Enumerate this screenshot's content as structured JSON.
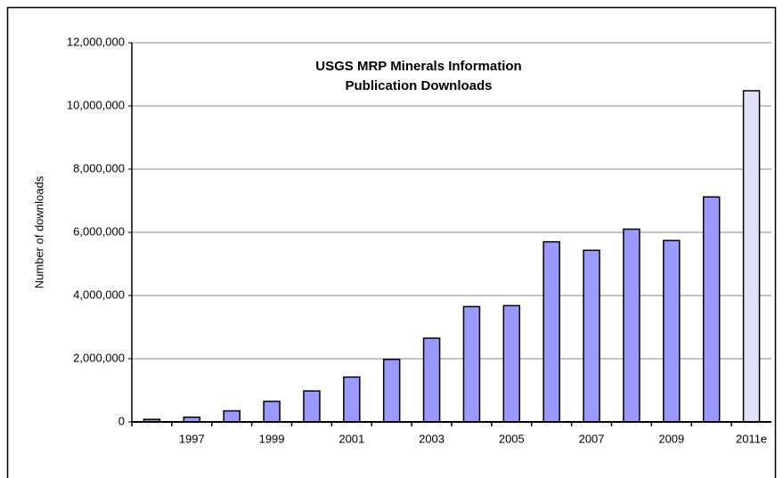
{
  "chart_data": {
    "type": "bar",
    "title": [
      "USGS MRP Minerals Information",
      "Publication Downloads"
    ],
    "y_label": "Number of downloads",
    "categories": [
      null,
      "1997",
      null,
      "1999",
      null,
      "2001",
      null,
      "2003",
      null,
      "2005",
      null,
      "2007",
      null,
      "2009",
      null,
      "2011e"
    ],
    "values": [
      80000,
      150000,
      350000,
      650000,
      980000,
      1420000,
      1980000,
      2650000,
      3650000,
      3680000,
      5700000,
      5430000,
      6100000,
      5740000,
      7120000,
      10480000
    ],
    "colors": [
      "#9999ff",
      "#9999ff",
      "#9999ff",
      "#9999ff",
      "#9999ff",
      "#9999ff",
      "#9999ff",
      "#9999ff",
      "#9999ff",
      "#9999ff",
      "#9999ff",
      "#9999ff",
      "#9999ff",
      "#9999ff",
      "#9999ff",
      "#e0e0f8"
    ],
    "ylim": [
      0,
      12000000
    ],
    "yticks": [
      0,
      {
        "value": 2000000,
        "label": "2,000,000"
      },
      {
        "value": 4000000,
        "label": "4,000,000"
      },
      {
        "value": 6000000,
        "label": "6,000,000"
      },
      {
        "value": 8000000,
        "label": "8,000,000"
      },
      {
        "value": 10000000,
        "label": "10,000,000"
      },
      {
        "value": 12000000,
        "label": "12,000,000"
      }
    ],
    "grid": true
  }
}
